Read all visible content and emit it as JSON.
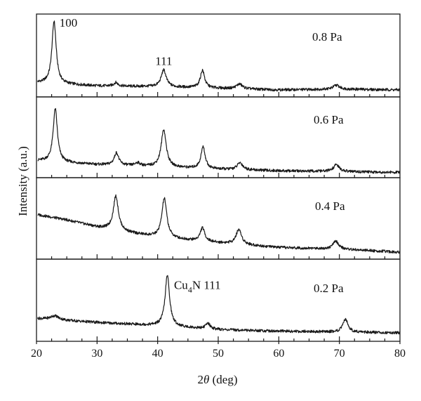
{
  "chart_data": {
    "type": "line",
    "title": "",
    "xlabel_italic": "θ",
    "xlabel_prefix": "2",
    "xlabel_suffix": " (deg)",
    "ylabel": "Intensity (a.u.)",
    "xlim": [
      20,
      80
    ],
    "xticks": [
      20,
      30,
      40,
      50,
      60,
      70,
      80
    ],
    "grid": false,
    "legend": "none",
    "line_color": "#1a1a1a",
    "panels": [
      {
        "label": "0.8 Pa",
        "ylim": [
          0,
          10
        ],
        "annotations": [
          {
            "text": "100",
            "x": 23.8,
            "y": 8.6
          },
          {
            "text": "111",
            "x": 39.6,
            "y": 3.8
          }
        ],
        "baseline": [
          [
            20,
            1.6
          ],
          [
            30,
            1.2
          ],
          [
            40,
            1.1
          ],
          [
            50,
            0.9
          ],
          [
            60,
            0.7
          ],
          [
            70,
            0.8
          ],
          [
            80,
            0.7
          ]
        ],
        "peaks": [
          {
            "x": 22.9,
            "h": 7.8,
            "w": 0.42
          },
          {
            "x": 33.1,
            "h": 0.45,
            "w": 0.4
          },
          {
            "x": 41.0,
            "h": 2.1,
            "w": 0.5
          },
          {
            "x": 47.4,
            "h": 2.2,
            "w": 0.42
          },
          {
            "x": 53.5,
            "h": 0.6,
            "w": 0.6
          },
          {
            "x": 69.5,
            "h": 0.5,
            "w": 0.6
          }
        ]
      },
      {
        "label": "0.6 Pa",
        "ylim": [
          0,
          10
        ],
        "annotations": [],
        "baseline": [
          [
            20,
            2.0
          ],
          [
            30,
            1.5
          ],
          [
            40,
            1.2
          ],
          [
            50,
            0.9
          ],
          [
            60,
            0.7
          ],
          [
            70,
            0.6
          ],
          [
            80,
            0.5
          ]
        ],
        "peaks": [
          {
            "x": 23.1,
            "h": 6.8,
            "w": 0.42
          },
          {
            "x": 33.2,
            "h": 1.6,
            "w": 0.45
          },
          {
            "x": 36.7,
            "h": 0.4,
            "w": 0.5
          },
          {
            "x": 41.0,
            "h": 4.8,
            "w": 0.5
          },
          {
            "x": 47.5,
            "h": 2.8,
            "w": 0.42
          },
          {
            "x": 53.6,
            "h": 0.9,
            "w": 0.55
          },
          {
            "x": 69.5,
            "h": 0.9,
            "w": 0.55
          }
        ]
      },
      {
        "label": "0.4 Pa",
        "ylim": [
          0,
          10
        ],
        "annotations": [],
        "baseline": [
          [
            20,
            5.5
          ],
          [
            25,
            4.8
          ],
          [
            30,
            3.9
          ],
          [
            35,
            3.2
          ],
          [
            40,
            2.6
          ],
          [
            50,
            1.9
          ],
          [
            60,
            1.3
          ],
          [
            70,
            1.1
          ],
          [
            80,
            0.7
          ]
        ],
        "peaks": [
          {
            "x": 33.1,
            "h": 4.4,
            "w": 0.5
          },
          {
            "x": 41.1,
            "h": 5.0,
            "w": 0.5
          },
          {
            "x": 47.4,
            "h": 1.7,
            "w": 0.45
          },
          {
            "x": 53.4,
            "h": 1.9,
            "w": 0.55
          },
          {
            "x": 69.4,
            "h": 1.0,
            "w": 0.55
          }
        ]
      },
      {
        "label": "0.2 Pa",
        "ylim": [
          0,
          10
        ],
        "annotations": [
          {
            "text_main": "Cu",
            "text_sub": "4",
            "text_tail": "N 111",
            "x": 42.7,
            "y": 6.4
          }
        ],
        "baseline": [
          [
            20,
            2.7
          ],
          [
            30,
            2.2
          ],
          [
            40,
            1.8
          ],
          [
            50,
            1.3
          ],
          [
            60,
            1.1
          ],
          [
            70,
            1.0
          ],
          [
            80,
            0.9
          ]
        ],
        "peaks": [
          {
            "x": 23.0,
            "h": 0.5,
            "w": 0.8
          },
          {
            "x": 41.6,
            "h": 6.4,
            "w": 0.45
          },
          {
            "x": 48.3,
            "h": 0.7,
            "w": 0.45
          },
          {
            "x": 71.0,
            "h": 1.6,
            "w": 0.5
          }
        ]
      }
    ]
  }
}
